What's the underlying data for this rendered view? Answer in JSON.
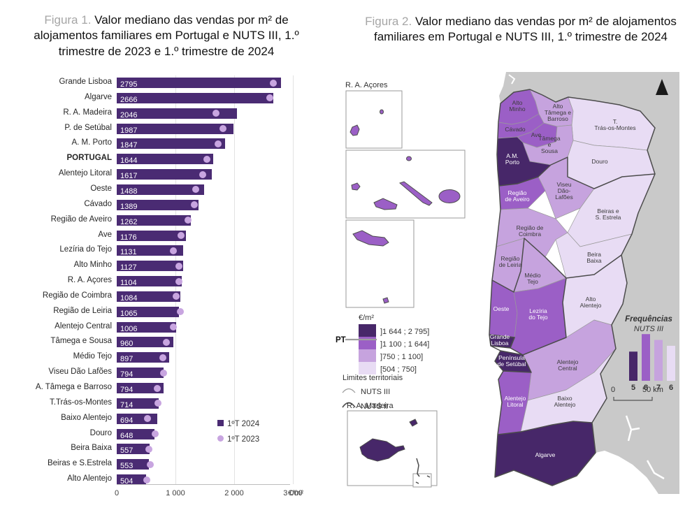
{
  "figure1": {
    "title_prefix": "Figura 1.",
    "title_rest": " Valor mediano das vendas por m² de alojamentos familiares em Portugal e NUTS III, 1.º trimestre de 2023 e 1.º trimestre de 2024",
    "legend": {
      "s2024": "1ºT 2024",
      "s2023": "1ºT 2023"
    },
    "x_axis": {
      "ticks": [
        "0",
        "1 000",
        "2 000",
        "3 000"
      ],
      "unit": "€/m²"
    }
  },
  "figure2": {
    "title_prefix": "Figura 2.",
    "title_rest": " Valor mediano das vendas por m² de alojamentos familiares em Portugal e NUTS III, 1.º trimestre de 2024",
    "legend": {
      "unit": "€/m²",
      "pt_label": "PT",
      "classes": [
        {
          "label": "]1 644 ; 2 795]",
          "class": "darkest"
        },
        {
          "label": "]1 100 ; 1 644]",
          "class": "medium"
        },
        {
          "label": "]750 ; 1 100]",
          "class": "light"
        },
        {
          "label": "[504 ; 750]",
          "class": "lightest"
        }
      ],
      "limits_title": "Limites territoriais",
      "limits": [
        "NUTS III",
        "NUTS II"
      ]
    },
    "palette": {
      "darkest": "#472769",
      "medium": "#9b5fc6",
      "light": "#c6a3de",
      "lightest": "#e8dcf4"
    },
    "insets": {
      "acores": "R. A. Açores",
      "madeira": "R. A. Madeira"
    },
    "frequencies": {
      "title": "Frequências",
      "subtitle": "NUTS III",
      "values": [
        5,
        8,
        7,
        6
      ],
      "classes": [
        "darkest",
        "medium",
        "light",
        "lightest"
      ]
    },
    "scale": {
      "zero": "0",
      "label": "50 km"
    },
    "regions": [
      {
        "id": "alto_minho",
        "lines": [
          "Alto",
          "Minho"
        ],
        "class": "medium",
        "text": "dark"
      },
      {
        "id": "cavado",
        "lines": [
          "Cávado"
        ],
        "class": "medium",
        "text": "dark"
      },
      {
        "id": "ave",
        "lines": [
          "Ave"
        ],
        "class": "medium",
        "text": "dark"
      },
      {
        "id": "atb",
        "lines": [
          "Alto",
          "Tâmega e",
          "Barroso"
        ],
        "class": "light",
        "text": "dark"
      },
      {
        "id": "ttm",
        "lines": [
          "T.",
          "Trás-os-Montes"
        ],
        "class": "lightest",
        "text": "dark"
      },
      {
        "id": "t_sousa",
        "lines": [
          "Tâmega",
          "e",
          "Sousa"
        ],
        "class": "light",
        "text": "dark"
      },
      {
        "id": "amp",
        "lines": [
          "A.M.",
          "Porto"
        ],
        "class": "darkest",
        "text": "white"
      },
      {
        "id": "douro",
        "lines": [
          "Douro"
        ],
        "class": "lightest",
        "text": "dark"
      },
      {
        "id": "viseu",
        "lines": [
          "Viseu",
          "Dão-",
          "Lafões"
        ],
        "class": "light",
        "text": "dark"
      },
      {
        "id": "aveiro",
        "lines": [
          "Região",
          "de Aveiro"
        ],
        "class": "medium",
        "text": "white"
      },
      {
        "id": "beiras",
        "lines": [
          "Beiras e",
          "S. Estrela"
        ],
        "class": "lightest",
        "text": "dark"
      },
      {
        "id": "coimbra",
        "lines": [
          "Região de",
          "Coimbra"
        ],
        "class": "light",
        "text": "dark"
      },
      {
        "id": "beira_baixa",
        "lines": [
          "Beira",
          "Baixa"
        ],
        "class": "lightest",
        "text": "dark"
      },
      {
        "id": "leiria",
        "lines": [
          "Região",
          "de Leiria"
        ],
        "class": "light",
        "text": "dark"
      },
      {
        "id": "medio_tejo",
        "lines": [
          "Médio",
          "Tejo"
        ],
        "class": "light",
        "text": "dark"
      },
      {
        "id": "oeste",
        "lines": [
          "Oeste"
        ],
        "class": "medium",
        "text": "white"
      },
      {
        "id": "leziria",
        "lines": [
          "Lezíria",
          "do Tejo"
        ],
        "class": "medium",
        "text": "white"
      },
      {
        "id": "alto_alentejo",
        "lines": [
          "Alto",
          "Alentejo"
        ],
        "class": "lightest",
        "text": "dark"
      },
      {
        "id": "gl",
        "lines": [
          "Grande",
          "Lisboa"
        ],
        "class": "darkest",
        "text": "white"
      },
      {
        "id": "ps",
        "lines": [
          "Península",
          "de Setúbal"
        ],
        "class": "darkest",
        "text": "white"
      },
      {
        "id": "ac",
        "lines": [
          "Alentejo",
          "Central"
        ],
        "class": "light",
        "text": "dark"
      },
      {
        "id": "litoral",
        "lines": [
          "Alentejo",
          "Litoral"
        ],
        "class": "medium",
        "text": "white"
      },
      {
        "id": "baixo",
        "lines": [
          "Baixo",
          "Alentejo"
        ],
        "class": "lightest",
        "text": "dark"
      },
      {
        "id": "algarve",
        "lines": [
          "Algarve"
        ],
        "class": "darkest",
        "text": "white"
      }
    ]
  },
  "chart_data": [
    {
      "type": "bar",
      "title": "Valor mediano das vendas por m² de alojamentos familiares em Portugal e NUTS III, 1.º trimestre de 2023 e 1.º trimestre de 2024",
      "orientation": "horizontal",
      "categories": [
        "Grande Lisboa",
        "Algarve",
        "R. A. Madeira",
        "P. de Setúbal",
        "A. M. Porto",
        "PORTUGAL",
        "Alentejo Litoral",
        "Oeste",
        "Cávado",
        "Região de Aveiro",
        "Ave",
        "Lezíria do Tejo",
        "Alto Minho",
        "R. A. Açores",
        "Região de Coimbra",
        "Região de Leiria",
        "Alentejo Central",
        "Tâmega e Sousa",
        "Médio Tejo",
        "Viseu Dão Lafões",
        "A. Tâmega e Barroso",
        "T.Trás-os-Montes",
        "Baixo Alentejo",
        "Douro",
        "Beira Baixa",
        "Beiras e S.Estrela",
        "Alto Alentejo"
      ],
      "series": [
        {
          "name": "1ºT 2024",
          "marker": "bar",
          "values": [
            2795,
            2666,
            2046,
            1987,
            1847,
            1644,
            1617,
            1488,
            1389,
            1262,
            1176,
            1131,
            1127,
            1104,
            1084,
            1065,
            1006,
            960,
            897,
            794,
            794,
            714,
            694,
            648,
            557,
            553,
            504
          ]
        },
        {
          "name": "1ºT 2023",
          "marker": "dot",
          "estimated": true,
          "values": [
            2670,
            2610,
            1690,
            1815,
            1730,
            1530,
            1465,
            1350,
            1320,
            1220,
            1095,
            970,
            1060,
            1065,
            1010,
            1080,
            970,
            845,
            785,
            800,
            685,
            700,
            520,
            655,
            545,
            570,
            510
          ]
        }
      ],
      "xlabel": "€/m²",
      "xlim": [
        0,
        3000
      ],
      "xticks": [
        0,
        1000,
        2000,
        3000
      ],
      "grid": "vertical"
    },
    {
      "type": "heatmap",
      "subtype": "choropleth-map",
      "title": "Valor mediano das vendas por m² de alojamentos familiares em Portugal e NUTS III, 1.º trimestre de 2024",
      "unit": "€/m²",
      "bins": [
        "]1 644 ; 2 795]",
        "]1 100 ; 1 644]",
        "]750 ; 1 100]",
        "[504 ; 750]"
      ],
      "bin_frequencies": [
        5,
        8,
        7,
        6
      ],
      "legend_position": "left",
      "pt_marker": "PT"
    }
  ]
}
